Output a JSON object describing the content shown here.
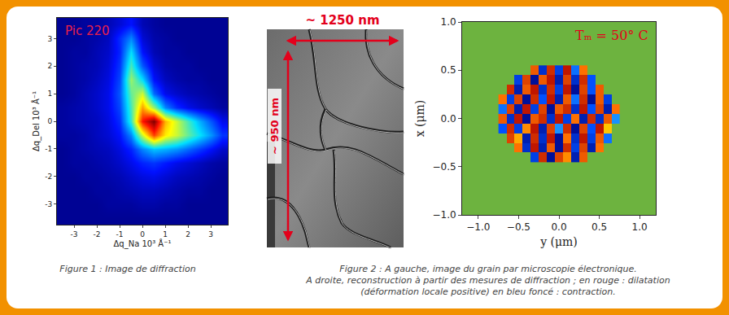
{
  "chart_data": [
    {
      "type": "heatmap",
      "title": "Pic 220",
      "x_label": "Δq_Na 10³ Å⁻¹",
      "y_label": "Δq_Del 10³ Å⁻¹",
      "x": [
        -3.5,
        -3,
        -2.5,
        -2,
        -1.5,
        -1,
        -0.5,
        0,
        0.5,
        1,
        1.5,
        2,
        2.5,
        3,
        3.5
      ],
      "y": [
        -3.5,
        -3,
        -2.5,
        -2,
        -1.5,
        -1,
        -0.5,
        0,
        0.5,
        1,
        1.5,
        2,
        2.5,
        3,
        3.5
      ],
      "z": [
        [
          0.02,
          0.02,
          0.02,
          0.02,
          0.02,
          0.02,
          0.02,
          0.02,
          0.02,
          0.02,
          0.02,
          0.02,
          0.02,
          0.02,
          0.02
        ],
        [
          0.02,
          0.02,
          0.02,
          0.02,
          0.03,
          0.03,
          0.03,
          0.04,
          0.04,
          0.03,
          0.03,
          0.02,
          0.02,
          0.02,
          0.02
        ],
        [
          0.02,
          0.02,
          0.02,
          0.03,
          0.03,
          0.04,
          0.05,
          0.06,
          0.06,
          0.05,
          0.04,
          0.03,
          0.03,
          0.02,
          0.02
        ],
        [
          0.02,
          0.02,
          0.03,
          0.03,
          0.04,
          0.05,
          0.07,
          0.09,
          0.1,
          0.08,
          0.06,
          0.05,
          0.04,
          0.03,
          0.02
        ],
        [
          0.02,
          0.03,
          0.03,
          0.04,
          0.05,
          0.07,
          0.1,
          0.14,
          0.16,
          0.13,
          0.1,
          0.08,
          0.06,
          0.04,
          0.03
        ],
        [
          0.02,
          0.03,
          0.04,
          0.05,
          0.06,
          0.09,
          0.14,
          0.25,
          0.32,
          0.3,
          0.27,
          0.22,
          0.17,
          0.12,
          0.07
        ],
        [
          0.03,
          0.03,
          0.04,
          0.06,
          0.08,
          0.12,
          0.25,
          0.55,
          0.8,
          0.62,
          0.55,
          0.45,
          0.36,
          0.27,
          0.16
        ],
        [
          0.03,
          0.04,
          0.05,
          0.06,
          0.09,
          0.15,
          0.4,
          0.85,
          1.0,
          0.68,
          0.55,
          0.42,
          0.3,
          0.2,
          0.1
        ],
        [
          0.03,
          0.04,
          0.05,
          0.07,
          0.1,
          0.18,
          0.42,
          0.7,
          0.5,
          0.25,
          0.15,
          0.1,
          0.07,
          0.05,
          0.03
        ],
        [
          0.02,
          0.03,
          0.05,
          0.07,
          0.1,
          0.2,
          0.45,
          0.55,
          0.22,
          0.1,
          0.07,
          0.05,
          0.04,
          0.03,
          0.02
        ],
        [
          0.02,
          0.03,
          0.04,
          0.06,
          0.09,
          0.18,
          0.5,
          0.35,
          0.12,
          0.06,
          0.04,
          0.03,
          0.03,
          0.02,
          0.02
        ],
        [
          0.02,
          0.03,
          0.04,
          0.05,
          0.08,
          0.16,
          0.42,
          0.2,
          0.08,
          0.04,
          0.03,
          0.03,
          0.02,
          0.02,
          0.02
        ],
        [
          0.02,
          0.03,
          0.03,
          0.05,
          0.07,
          0.14,
          0.35,
          0.12,
          0.05,
          0.03,
          0.03,
          0.02,
          0.02,
          0.02,
          0.02
        ],
        [
          0.02,
          0.02,
          0.03,
          0.04,
          0.06,
          0.15,
          0.25,
          0.08,
          0.04,
          0.03,
          0.02,
          0.02,
          0.02,
          0.02,
          0.02
        ],
        [
          0.02,
          0.02,
          0.03,
          0.03,
          0.05,
          0.08,
          0.12,
          0.05,
          0.03,
          0.02,
          0.02,
          0.02,
          0.02,
          0.02,
          0.02
        ]
      ],
      "zlim": [
        0,
        1
      ],
      "xlim": [
        -3.75,
        3.75
      ],
      "ylim": [
        -3.75,
        3.75
      ],
      "xticks": [
        -3,
        -2,
        -1,
        0,
        1,
        2,
        3
      ],
      "yticks": [
        -3,
        -2,
        -1,
        0,
        1,
        2,
        3
      ],
      "grid": false
    },
    {
      "type": "heatmap",
      "title": "Tₘ = 50° C",
      "x_label": "y (μm)",
      "y_label": "x (μm)",
      "color": "#6db33f",
      "x": [
        -0.7,
        -0.6,
        -0.5,
        -0.4,
        -0.3,
        -0.2,
        -0.1,
        0,
        0.1,
        0.2,
        0.3,
        0.4,
        0.5,
        0.6,
        0.7
      ],
      "y": [
        -0.4,
        -0.3,
        -0.2,
        -0.1,
        0,
        0.1,
        0.2,
        0.3,
        0.4,
        0.5
      ],
      "z": [
        [
          null,
          null,
          null,
          null,
          -0.6,
          0.8,
          -0.9,
          0.7,
          0.4,
          -0.8,
          0.6,
          null,
          null,
          null,
          null
        ],
        [
          null,
          null,
          0.5,
          -0.7,
          0.9,
          -0.8,
          0.6,
          -0.9,
          0.8,
          -0.6,
          0.7,
          -0.8,
          0.5,
          null,
          null
        ],
        [
          null,
          0.7,
          0.3,
          -0.8,
          0.8,
          -0.7,
          0.9,
          -0.9,
          0.5,
          -0.7,
          0.9,
          -0.6,
          0.6,
          -0.4,
          null
        ],
        [
          -0.5,
          0.8,
          -0.6,
          0.4,
          0.9,
          -0.8,
          0.7,
          -0.3,
          0.8,
          -0.9,
          0.7,
          -0.5,
          0.9,
          0.2,
          null
        ],
        [
          0.6,
          -0.7,
          0.9,
          -0.9,
          0.6,
          0.8,
          -0.7,
          0.9,
          -0.6,
          0.5,
          -0.8,
          0.8,
          -0.7,
          0.6,
          -0.3
        ],
        [
          -0.4,
          0.7,
          -0.8,
          0.9,
          -0.6,
          0.7,
          -0.9,
          0.6,
          0.8,
          -0.7,
          0.9,
          -0.5,
          0.7,
          -0.8,
          0.5
        ],
        [
          0.5,
          -0.6,
          0.7,
          -0.9,
          0.8,
          -0.5,
          0.9,
          -0.8,
          0.6,
          -0.4,
          0.8,
          -0.9,
          0.6,
          -0.6,
          null
        ],
        [
          null,
          0.8,
          -0.8,
          0.6,
          0.9,
          -0.7,
          0.8,
          -0.6,
          0.9,
          -0.9,
          0.7,
          -0.5,
          0.6,
          null,
          null
        ],
        [
          null,
          null,
          -0.6,
          0.7,
          -0.9,
          0.6,
          0.9,
          -0.8,
          0.7,
          -0.7,
          0.8,
          -0.5,
          null,
          null,
          null
        ],
        [
          null,
          null,
          null,
          null,
          0.6,
          -0.7,
          0.8,
          -0.6,
          0.9,
          -0.4,
          0.5,
          null,
          null,
          null,
          null
        ]
      ],
      "zlim": [
        -1,
        1
      ],
      "xlim": [
        -1.2,
        1.2
      ],
      "ylim": [
        -1.0,
        1.0
      ],
      "xticks": [
        {
          "value": -1,
          "label": "−1.0"
        },
        {
          "value": -0.5,
          "label": "−0.5"
        },
        {
          "value": 0,
          "label": "0.0"
        },
        {
          "value": 0.5,
          "label": "0.5"
        },
        {
          "value": 1,
          "label": "1.0"
        }
      ],
      "yticks": [
        {
          "value": -1,
          "label": "−1.0"
        },
        {
          "value": -0.5,
          "label": "−0.5"
        },
        {
          "value": 0,
          "label": "0.0"
        },
        {
          "value": 0.5,
          "label": "0.5"
        },
        {
          "value": 1,
          "label": "1.0"
        }
      ],
      "grid": false
    }
  ],
  "micrograph": {
    "width_label": "~ 1250 nm",
    "height_label": "~ 950 nm"
  },
  "captions": {
    "figure1": [
      "Figure 1 : Image de diffraction"
    ],
    "figure2": [
      "Figure 2 :  A gauche, image du grain par microscopie électronique.",
      "A droite, reconstruction à partir des mesures de diffraction ; en rouge : dilatation",
      "(déformation locale positive) en bleu foncé : contraction."
    ]
  }
}
